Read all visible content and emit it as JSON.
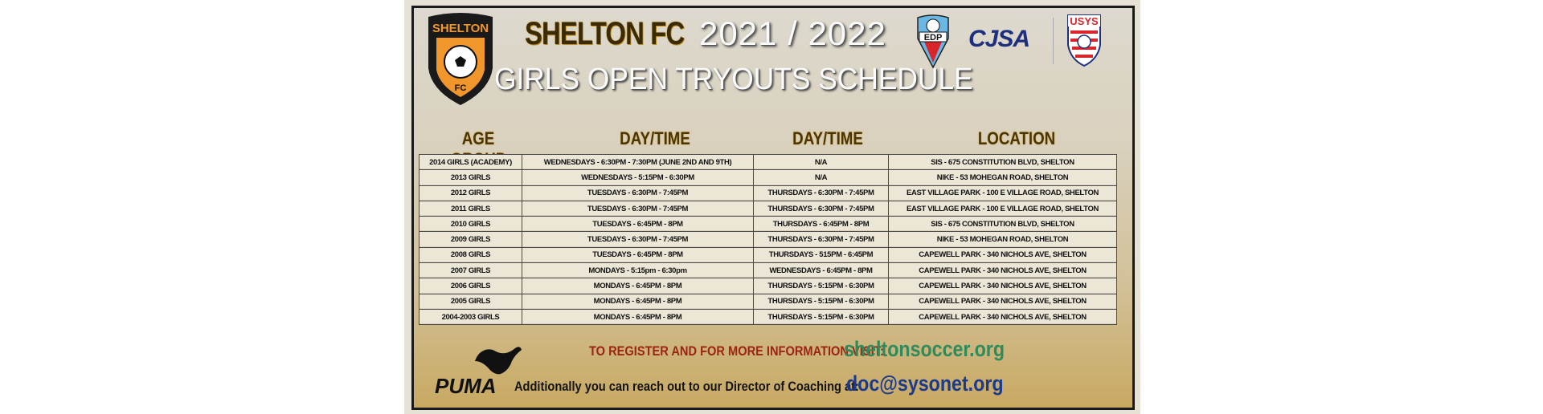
{
  "header": {
    "club_name": "SHELTON FC",
    "season": "2021 / 2022",
    "subtitle": "GIRLS OPEN TRYOUTS SCHEDULE",
    "crest_text_top": "SHELTON",
    "crest_text_bottom": "FC",
    "logos": [
      "EDP",
      "CJSA",
      "USYS"
    ]
  },
  "table": {
    "headers": [
      "AGE GROUP",
      "DAY/TIME",
      "DAY/TIME",
      "LOCATION"
    ],
    "rows": [
      [
        "2014 GIRLS (ACADEMY)",
        "WEDNESDAYS - 6:30PM - 7:30PM (JUNE 2ND AND 9TH)",
        "N/A",
        "SIS - 675 CONSTITUTION BLVD, SHELTON"
      ],
      [
        "2013 GIRLS",
        "WEDNESDAYS - 5:15PM - 6:30PM",
        "N/A",
        "NIKE - 53 MOHEGAN ROAD, SHELTON"
      ],
      [
        "2012 GIRLS",
        "TUESDAYS - 6:30PM - 7:45PM",
        "THURSDAYS - 6:30PM - 7:45PM",
        "EAST VILLAGE PARK - 100 E VILLAGE ROAD, SHELTON"
      ],
      [
        "2011 GIRLS",
        "TUESDAYS - 6:30PM - 7:45PM",
        "THURSDAYS - 6:30PM - 7:45PM",
        "EAST VILLAGE PARK - 100 E VILLAGE ROAD, SHELTON"
      ],
      [
        "2010 GIRLS",
        "TUESDAYS - 6:45PM - 8PM",
        "THURSDAYS - 6:45PM - 8PM",
        "SIS - 675 CONSTITUTION BLVD, SHELTON"
      ],
      [
        "2009 GIRLS",
        "TUESDAYS - 6:30PM - 7:45PM",
        "THURSDAYS - 6:30PM - 7:45PM",
        "NIKE - 53 MOHEGAN ROAD, SHELTON"
      ],
      [
        "2008 GIRLS",
        "TUESDAYS - 6:45PM - 8PM",
        "THURSDAYS - 515PM - 6:45PM",
        "CAPEWELL PARK - 340 NICHOLS AVE, SHELTON"
      ],
      [
        "2007 GIRLS",
        "MONDAYS - 5:15pm - 6:30pm",
        "WEDNESDAYS - 6:45PM - 8PM",
        "CAPEWELL PARK - 340 NICHOLS AVE, SHELTON"
      ],
      [
        "2006 GIRLS",
        "MONDAYS - 6:45PM - 8PM",
        "THURSDAYS - 5:15PM - 6:30PM",
        "CAPEWELL PARK - 340 NICHOLS AVE, SHELTON"
      ],
      [
        "2005 GIRLS",
        "MONDAYS - 6:45PM - 8PM",
        "THURSDAYS - 5:15PM - 6:30PM",
        "CAPEWELL PARK - 340 NICHOLS AVE, SHELTON"
      ],
      [
        "2004-2003 GIRLS",
        "MONDAYS - 6:45PM - 8PM",
        "THURSDAYS - 5:15PM - 6:30PM",
        "CAPEWELL PARK - 340 NICHOLS AVE, SHELTON"
      ]
    ]
  },
  "footer": {
    "sponsor": "PUMA",
    "register_text": "TO REGISTER AND FOR MORE INFORMATION VISIT:",
    "register_url": "sheltonsoccer.org",
    "contact_text": "Additionally you can reach out to our Director of Coaching at:",
    "contact_email": "doc@sysonet.org"
  },
  "colors": {
    "register_text": "#9c2412",
    "register_url": "#2f8a5c",
    "contact_email": "#1b3a8e",
    "crest_orange": "#f0962a",
    "header_gold": "#4a3508"
  }
}
